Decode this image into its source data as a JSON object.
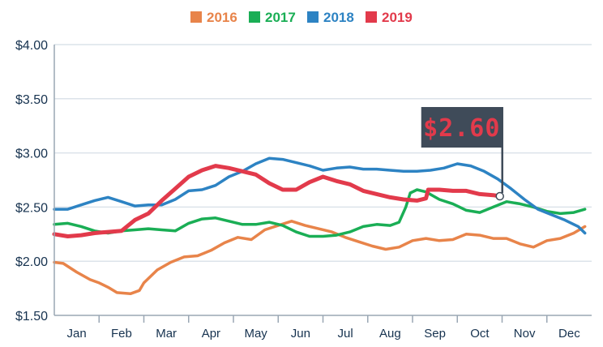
{
  "chart_data": {
    "type": "line",
    "title": "",
    "xlabel": "",
    "ylabel": "",
    "ylim": [
      1.5,
      4.0
    ],
    "yticks": [
      "$1.50",
      "$2.00",
      "$2.50",
      "$3.00",
      "$3.50",
      "$4.00"
    ],
    "ytick_values": [
      1.5,
      2.0,
      2.5,
      3.0,
      3.5,
      4.0
    ],
    "categories": [
      "Jan",
      "Feb",
      "Mar",
      "Apr",
      "May",
      "Jun",
      "Jul",
      "Aug",
      "Sep",
      "Oct",
      "Nov",
      "Dec"
    ],
    "grid": "horizontal",
    "legend_position": "top-center",
    "x_range": [
      0,
      12
    ],
    "series": [
      {
        "name": "2016",
        "color": "#e8844a",
        "x": [
          0,
          0.2,
          0.5,
          0.8,
          1.0,
          1.2,
          1.4,
          1.7,
          1.9,
          2.0,
          2.3,
          2.6,
          2.9,
          3.2,
          3.5,
          3.8,
          4.1,
          4.4,
          4.7,
          5.0,
          5.3,
          5.6,
          5.9,
          6.2,
          6.5,
          6.8,
          7.1,
          7.4,
          7.7,
          8.0,
          8.3,
          8.6,
          8.9,
          9.2,
          9.5,
          9.8,
          10.1,
          10.4,
          10.7,
          11.0,
          11.3,
          11.6,
          11.85
        ],
        "values": [
          1.99,
          1.98,
          1.9,
          1.83,
          1.8,
          1.76,
          1.71,
          1.7,
          1.73,
          1.8,
          1.92,
          1.99,
          2.04,
          2.05,
          2.1,
          2.17,
          2.22,
          2.2,
          2.29,
          2.33,
          2.37,
          2.33,
          2.3,
          2.27,
          2.22,
          2.18,
          2.14,
          2.11,
          2.13,
          2.19,
          2.21,
          2.19,
          2.2,
          2.25,
          2.24,
          2.21,
          2.21,
          2.16,
          2.13,
          2.19,
          2.21,
          2.26,
          2.32
        ]
      },
      {
        "name": "2017",
        "color": "#1aae55",
        "x": [
          0,
          0.3,
          0.6,
          0.9,
          1.2,
          1.5,
          1.8,
          2.1,
          2.4,
          2.7,
          3.0,
          3.3,
          3.6,
          3.9,
          4.2,
          4.5,
          4.8,
          5.1,
          5.4,
          5.7,
          6.0,
          6.3,
          6.6,
          6.9,
          7.2,
          7.5,
          7.7,
          7.85,
          7.95,
          8.1,
          8.3,
          8.6,
          8.9,
          9.2,
          9.5,
          9.8,
          10.1,
          10.4,
          10.7,
          11.0,
          11.3,
          11.6,
          11.85
        ],
        "values": [
          2.34,
          2.35,
          2.32,
          2.28,
          2.26,
          2.28,
          2.29,
          2.3,
          2.29,
          2.28,
          2.35,
          2.39,
          2.4,
          2.37,
          2.34,
          2.34,
          2.36,
          2.33,
          2.27,
          2.23,
          2.23,
          2.24,
          2.27,
          2.32,
          2.34,
          2.33,
          2.36,
          2.5,
          2.63,
          2.66,
          2.64,
          2.57,
          2.53,
          2.47,
          2.45,
          2.5,
          2.55,
          2.53,
          2.5,
          2.46,
          2.44,
          2.45,
          2.48
        ]
      },
      {
        "name": "2018",
        "color": "#2d83c3",
        "x": [
          0,
          0.3,
          0.6,
          0.9,
          1.2,
          1.5,
          1.8,
          2.1,
          2.4,
          2.7,
          3.0,
          3.3,
          3.6,
          3.9,
          4.2,
          4.5,
          4.8,
          5.1,
          5.4,
          5.7,
          6.0,
          6.3,
          6.6,
          6.9,
          7.2,
          7.5,
          7.8,
          8.1,
          8.4,
          8.7,
          9.0,
          9.3,
          9.6,
          9.9,
          10.2,
          10.5,
          10.8,
          11.1,
          11.4,
          11.7,
          11.85
        ],
        "values": [
          2.48,
          2.48,
          2.52,
          2.56,
          2.59,
          2.55,
          2.51,
          2.52,
          2.52,
          2.57,
          2.65,
          2.66,
          2.7,
          2.78,
          2.83,
          2.9,
          2.95,
          2.94,
          2.91,
          2.88,
          2.84,
          2.86,
          2.87,
          2.85,
          2.85,
          2.84,
          2.83,
          2.83,
          2.84,
          2.86,
          2.9,
          2.88,
          2.83,
          2.76,
          2.67,
          2.57,
          2.48,
          2.43,
          2.38,
          2.32,
          2.26
        ]
      },
      {
        "name": "2019",
        "color": "#e23a4b",
        "x": [
          0,
          0.3,
          0.6,
          0.9,
          1.2,
          1.5,
          1.8,
          2.1,
          2.4,
          2.7,
          3.0,
          3.3,
          3.6,
          3.9,
          4.2,
          4.5,
          4.8,
          5.1,
          5.4,
          5.7,
          6.0,
          6.3,
          6.6,
          6.9,
          7.2,
          7.5,
          7.8,
          8.1,
          8.3,
          8.35,
          8.6,
          8.9,
          9.2,
          9.5,
          9.8,
          9.95
        ],
        "values": [
          2.25,
          2.23,
          2.24,
          2.26,
          2.27,
          2.28,
          2.38,
          2.44,
          2.56,
          2.67,
          2.78,
          2.84,
          2.88,
          2.86,
          2.83,
          2.8,
          2.72,
          2.66,
          2.66,
          2.73,
          2.78,
          2.74,
          2.71,
          2.65,
          2.62,
          2.59,
          2.57,
          2.56,
          2.58,
          2.66,
          2.66,
          2.65,
          2.65,
          2.62,
          2.61,
          2.6
        ]
      }
    ],
    "callout": {
      "text": "$2.60",
      "series": "2019",
      "x": 9.95,
      "value": 2.6,
      "box_color": "#3f4b59",
      "text_color": "#e23a4b"
    }
  }
}
